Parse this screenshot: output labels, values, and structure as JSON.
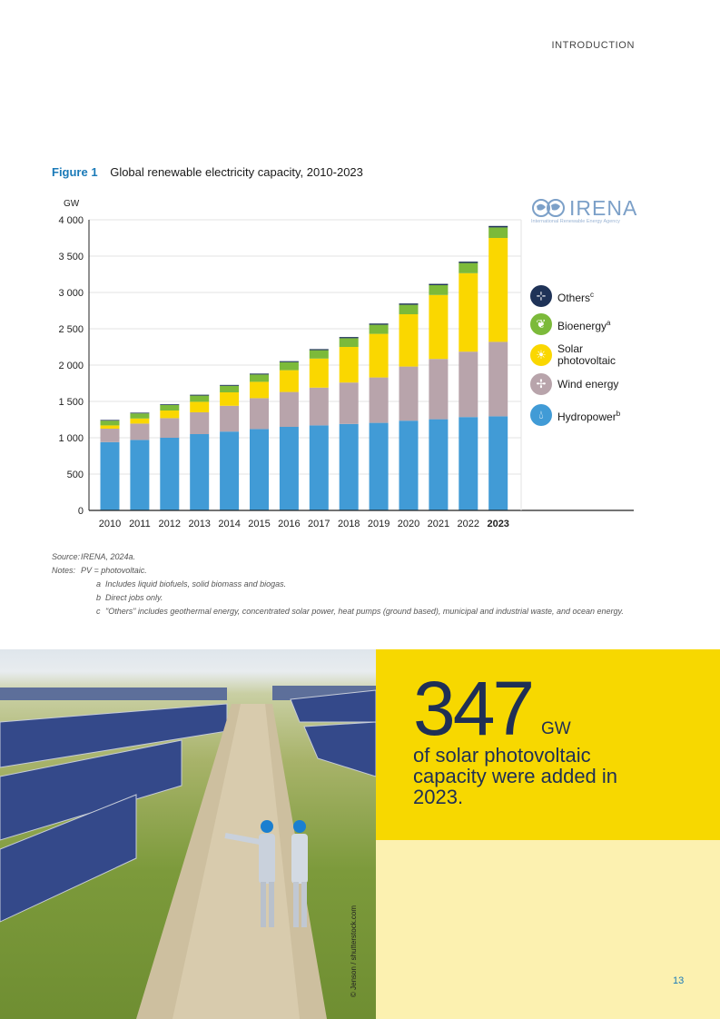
{
  "header": {
    "section": "INTRODUCTION"
  },
  "figure": {
    "number": "Figure 1",
    "title": "Global renewable electricity capacity, 2010-2023"
  },
  "logo": {
    "name": "IRENA",
    "tagline": "International Renewable Energy Agency"
  },
  "chart_data": {
    "type": "bar",
    "stacked": true,
    "title": "Global renewable electricity capacity, 2010-2023",
    "ylabel": "GW",
    "xlabel": "",
    "ylim": [
      0,
      4000
    ],
    "yticks": [
      0,
      500,
      1000,
      1500,
      2000,
      2500,
      3000,
      3500,
      4000
    ],
    "ytick_labels": [
      "0",
      "500",
      "1 000",
      "1 500",
      "2 000",
      "2 500",
      "3 000",
      "3 500",
      "4 000"
    ],
    "categories": [
      "2010",
      "2011",
      "2012",
      "2013",
      "2014",
      "2015",
      "2016",
      "2017",
      "2018",
      "2019",
      "2020",
      "2021",
      "2022",
      "2023"
    ],
    "highlight_category": "2023",
    "series": [
      {
        "name": "Hydropower",
        "sup": "b",
        "color": "#419bd6",
        "values": [
          940,
          970,
          1000,
          1050,
          1085,
          1120,
          1150,
          1170,
          1190,
          1205,
          1235,
          1255,
          1285,
          1295
        ]
      },
      {
        "name": "Wind energy",
        "sup": "",
        "color": "#b8a4ab",
        "values": [
          185,
          225,
          270,
          300,
          355,
          425,
          480,
          520,
          570,
          625,
          745,
          830,
          900,
          1025
        ]
      },
      {
        "name": "Solar photovoltaic",
        "sup": "",
        "color": "#fad700",
        "values": [
          45,
          70,
          105,
          145,
          185,
          225,
          300,
          400,
          490,
          600,
          720,
          880,
          1080,
          1430
        ]
      },
      {
        "name": "Bioenergy",
        "sup": "a",
        "color": "#7cba3a",
        "values": [
          65,
          70,
          75,
          85,
          90,
          100,
          110,
          115,
          120,
          125,
          130,
          135,
          140,
          145
        ]
      },
      {
        "name": "Others",
        "sup": "c",
        "color": "#1f3358",
        "values": [
          10,
          10,
          10,
          12,
          12,
          13,
          14,
          15,
          16,
          17,
          18,
          18,
          19,
          20
        ]
      }
    ],
    "legend_position": "right"
  },
  "legend": [
    {
      "label": "Others",
      "sup": "c",
      "color": "#1f3358",
      "icon": "plug-icon"
    },
    {
      "label": "Bioenergy",
      "sup": "a",
      "color": "#7cba3a",
      "icon": "leaf-icon"
    },
    {
      "label": "Solar photovoltaic",
      "sup": "",
      "color": "#fad700",
      "icon": "sun-icon"
    },
    {
      "label": "Wind energy",
      "sup": "",
      "color": "#b8a4ab",
      "icon": "wind-turbine-icon"
    },
    {
      "label": "Hydropower",
      "sup": "b",
      "color": "#419bd6",
      "icon": "water-drop-icon"
    }
  ],
  "notes": {
    "source_label": "Source:",
    "source": "IRENA, 2024a.",
    "notes_label": "Notes:",
    "pv": "PV = photovoltaic.",
    "items": [
      {
        "letter": "a",
        "text": "Includes liquid biofuels, solid biomass and biogas."
      },
      {
        "letter": "b",
        "text": "Direct jobs only."
      },
      {
        "letter": "c",
        "text": "\"Others\" includes geothermal energy, concentrated solar power, heat pumps (ground based), municipal and industrial waste, and ocean energy."
      }
    ]
  },
  "photo": {
    "credit": "© Jenson / shutterstock.com"
  },
  "stat": {
    "number": "347",
    "unit": "GW",
    "text": "of solar photovoltaic capacity were added in 2023."
  },
  "page": {
    "number": "13"
  }
}
